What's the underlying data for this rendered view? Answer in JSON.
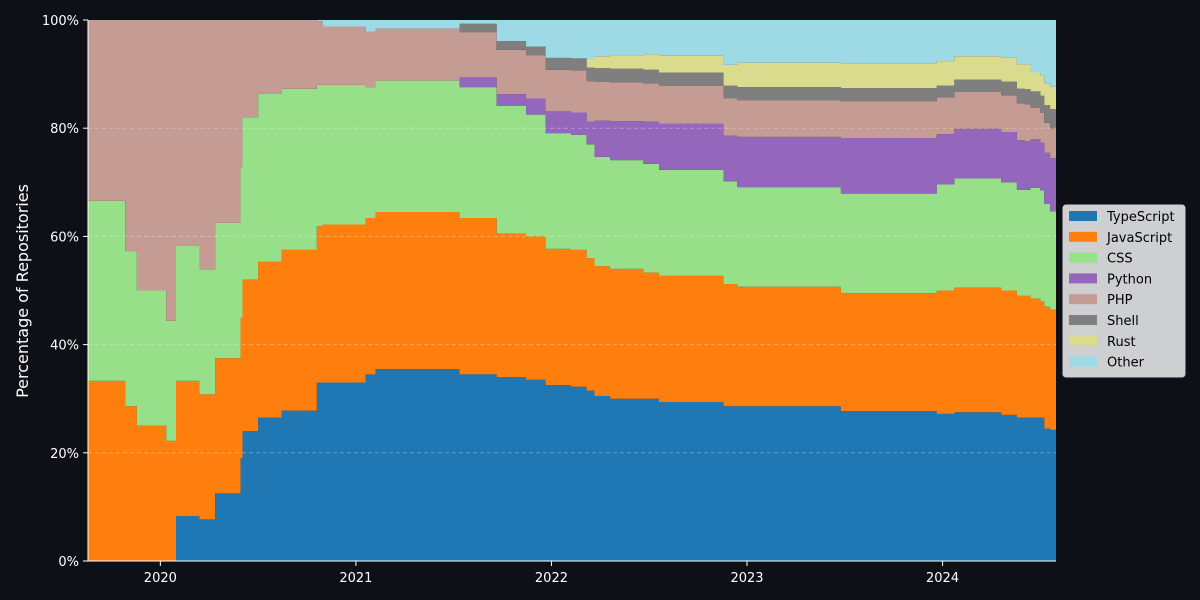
{
  "chart_data": {
    "type": "area",
    "stacked": true,
    "normalized": true,
    "ylabel": "Percentage of Repositories",
    "xlabel": "",
    "ylim": [
      0,
      100
    ],
    "y_ticks": [
      "0%",
      "20%",
      "40%",
      "60%",
      "80%",
      "100%"
    ],
    "x_ticks": [
      "2020",
      "2021",
      "2022",
      "2023",
      "2024"
    ],
    "xlim": [
      2019.63,
      2024.58
    ],
    "grid": "horizontal dashed",
    "legend_position": "right",
    "x": [
      2019.63,
      2019.78,
      2019.82,
      2019.88,
      2020.03,
      2020.08,
      2020.15,
      2020.2,
      2020.28,
      2020.38,
      2020.41,
      2020.42,
      2020.5,
      2020.62,
      2020.75,
      2020.8,
      2020.83,
      2021.05,
      2021.1,
      2021.47,
      2021.53,
      2021.72,
      2021.87,
      2021.97,
      2022.1,
      2022.18,
      2022.22,
      2022.3,
      2022.47,
      2022.55,
      2022.72,
      2022.88,
      2022.95,
      2023.48,
      2023.9,
      2023.97,
      2024.06,
      2024.15,
      2024.3,
      2024.38,
      2024.42,
      2024.45,
      2024.5,
      2024.52,
      2024.55,
      2024.58
    ],
    "series": [
      {
        "name": "TypeScript",
        "color": "#1f77b4",
        "values": [
          0,
          0,
          0,
          0,
          0,
          8.3,
          8.3,
          7.7,
          12.5,
          12.5,
          19,
          24,
          26.5,
          27.8,
          27.8,
          33,
          33,
          34.5,
          35.5,
          35.5,
          34.5,
          34,
          33.5,
          32.5,
          32.2,
          31.5,
          30.5,
          30,
          30,
          29.4,
          29.4,
          28.6,
          28.6,
          27.7,
          27.7,
          27.2,
          27.5,
          27.5,
          27,
          26.5,
          26.5,
          26.5,
          26.5,
          24.5,
          24,
          24
        ]
      },
      {
        "name": "JavaScript",
        "color": "#ff7f0e",
        "values": [
          33.3,
          33.3,
          28.6,
          25,
          22.2,
          25,
          25,
          23.1,
          25,
          25,
          26,
          28,
          28.8,
          29.7,
          29.7,
          28.9,
          29.2,
          28.9,
          29,
          29,
          28.9,
          26.5,
          26.5,
          25.2,
          25.3,
          24.5,
          24,
          24,
          23.3,
          23.3,
          23.3,
          22.6,
          22.1,
          21.8,
          21.8,
          22.8,
          23,
          23,
          23,
          22.5,
          22.5,
          22,
          21.5,
          22.5,
          22,
          22
        ]
      },
      {
        "name": "CSS",
        "color": "#98df8a",
        "values": [
          33.3,
          33.3,
          28.6,
          25,
          22.2,
          25,
          25,
          23.1,
          25,
          25,
          27.8,
          30,
          31.1,
          29.8,
          29.8,
          26.1,
          25.8,
          24.2,
          24.3,
          24.3,
          24.2,
          23.6,
          22.5,
          21.4,
          21.3,
          21,
          20.2,
          20.1,
          20.1,
          19.6,
          19.6,
          19,
          18.4,
          18.4,
          18.4,
          19.6,
          20.2,
          20.2,
          20,
          19.6,
          19.6,
          20.5,
          20.5,
          19,
          18,
          17
        ]
      },
      {
        "name": "Python",
        "color": "#9467bd",
        "values": [
          0,
          0,
          0,
          0,
          0,
          0,
          0,
          0,
          0,
          0,
          0,
          0,
          0,
          0,
          0,
          0,
          0,
          0,
          0,
          0,
          1.8,
          2.2,
          3,
          4,
          4.1,
          4.2,
          6.7,
          7.2,
          7.8,
          8.5,
          8.5,
          8.4,
          9.3,
          10.3,
          10.3,
          9.3,
          9.2,
          9.2,
          9.3,
          9.2,
          9,
          9,
          8.8,
          9.5,
          9.7,
          9.8
        ]
      },
      {
        "name": "PHP",
        "color": "#c49c94",
        "values": [
          33.4,
          33.4,
          42.8,
          50,
          55.6,
          41.7,
          41.7,
          46.1,
          37.5,
          37.5,
          27.2,
          18,
          13.6,
          12.7,
          12.7,
          11.8,
          10.8,
          10.2,
          9.6,
          9.6,
          8.3,
          8.2,
          8,
          7.7,
          7.8,
          7.5,
          7.2,
          7.2,
          7.1,
          7,
          7,
          6.9,
          6.8,
          6.8,
          6.8,
          6.8,
          6.8,
          6.8,
          6.8,
          6.8,
          6.8,
          5.8,
          5.5,
          5.5,
          5.5,
          5.2
        ]
      },
      {
        "name": "Shell",
        "color": "#7f7f7f",
        "values": [
          0,
          0,
          0,
          0,
          0,
          0,
          0,
          0,
          0,
          0,
          0,
          0,
          0,
          0,
          0,
          0,
          0,
          0,
          0,
          0,
          1.6,
          1.6,
          1.6,
          2.2,
          2.2,
          2.5,
          2.5,
          2.5,
          2.5,
          2.5,
          2.5,
          2.4,
          2.4,
          2.4,
          2.4,
          2.2,
          2.3,
          2.3,
          2.5,
          2.7,
          2.8,
          3,
          3.2,
          3.3,
          3.5,
          3.5
        ]
      },
      {
        "name": "Rust",
        "color": "#dbdb8d",
        "values": [
          0,
          0,
          0,
          0,
          0,
          0,
          0,
          0,
          0,
          0,
          0,
          0,
          0,
          0,
          0,
          0,
          0,
          0,
          0,
          0,
          0,
          0,
          0,
          0,
          0,
          1.5,
          2.2,
          2.5,
          2.9,
          3.1,
          3.1,
          3.8,
          4.5,
          4.6,
          4.6,
          4.5,
          4.3,
          4.3,
          4.4,
          4.5,
          4.6,
          3.5,
          3.8,
          4,
          4.1,
          4.2
        ]
      },
      {
        "name": "Other",
        "color": "#9edae5",
        "values": [
          0,
          0,
          0,
          0,
          0,
          0,
          0,
          0,
          0,
          0,
          0,
          0,
          0,
          0,
          0,
          0.2,
          1.2,
          2.2,
          1.6,
          1.6,
          0.7,
          3.9,
          4.9,
          7,
          7.1,
          7.3,
          6.7,
          6.5,
          6.3,
          6.6,
          6.6,
          8.3,
          7.9,
          8,
          8,
          7.6,
          6.7,
          6.7,
          7,
          8.2,
          8.2,
          9.7,
          10.2,
          11.7,
          12.2,
          12.8
        ]
      }
    ]
  }
}
